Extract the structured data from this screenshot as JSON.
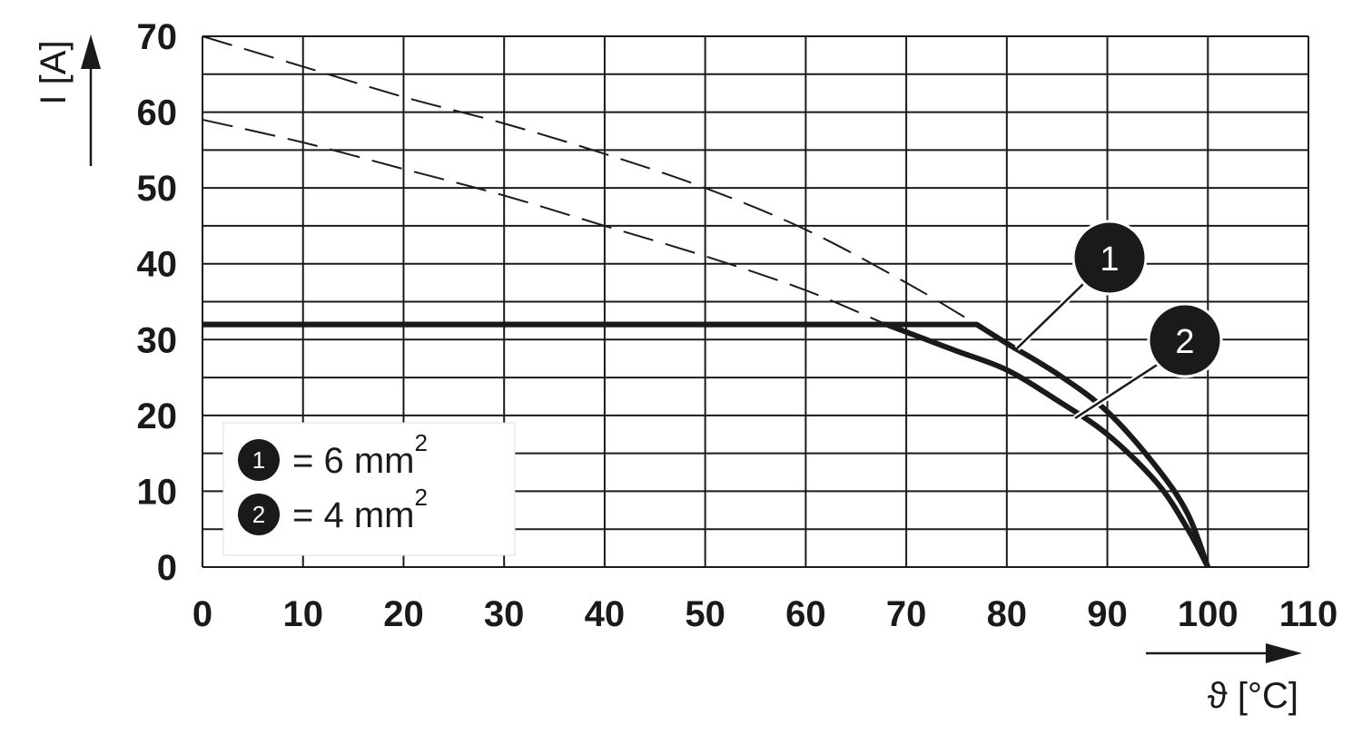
{
  "chart_data": {
    "type": "line",
    "xlabel": "ϑ [°C]",
    "ylabel": "I [A]",
    "xlim": [
      0,
      110
    ],
    "ylim": [
      0,
      70
    ],
    "x_ticks": [
      "0",
      "10",
      "20",
      "30",
      "40",
      "50",
      "60",
      "70",
      "80",
      "90",
      "100",
      "110"
    ],
    "y_ticks": [
      "0",
      "10",
      "20",
      "30",
      "40",
      "50",
      "60",
      "70"
    ],
    "grid": true,
    "series": [
      {
        "name": "6 mm²",
        "marker": "1",
        "color": "#1a1a1a",
        "points": [
          [
            0,
            32
          ],
          [
            77,
            32
          ],
          [
            80,
            29.5
          ],
          [
            85,
            25.5
          ],
          [
            90,
            20.5
          ],
          [
            95,
            13
          ],
          [
            98,
            7
          ],
          [
            100,
            0
          ]
        ],
        "extrapolated": [
          [
            0,
            70
          ],
          [
            10,
            66
          ],
          [
            20,
            62
          ],
          [
            30,
            58.5
          ],
          [
            40,
            54.5
          ],
          [
            50,
            50
          ],
          [
            60,
            44.5
          ],
          [
            70,
            37.5
          ],
          [
            77,
            32
          ]
        ]
      },
      {
        "name": "4 mm²",
        "marker": "2",
        "color": "#1a1a1a",
        "points": [
          [
            0,
            32
          ],
          [
            68,
            32
          ],
          [
            70,
            31
          ],
          [
            75,
            28.5
          ],
          [
            80,
            26
          ],
          [
            85,
            22
          ],
          [
            90,
            17.5
          ],
          [
            95,
            11
          ],
          [
            98,
            5
          ],
          [
            100,
            0
          ]
        ],
        "extrapolated": [
          [
            0,
            59
          ],
          [
            10,
            56
          ],
          [
            20,
            52.5
          ],
          [
            30,
            49
          ],
          [
            40,
            45
          ],
          [
            50,
            41
          ],
          [
            60,
            36.5
          ],
          [
            68,
            32
          ]
        ]
      }
    ],
    "legend": {
      "position": "bottom-left",
      "entries": [
        {
          "marker": "1",
          "text": "= 6 mm",
          "sup": "2"
        },
        {
          "marker": "2",
          "text": "= 4 mm",
          "sup": "2"
        }
      ]
    },
    "callouts": [
      {
        "label": "1"
      },
      {
        "label": "2"
      }
    ]
  }
}
